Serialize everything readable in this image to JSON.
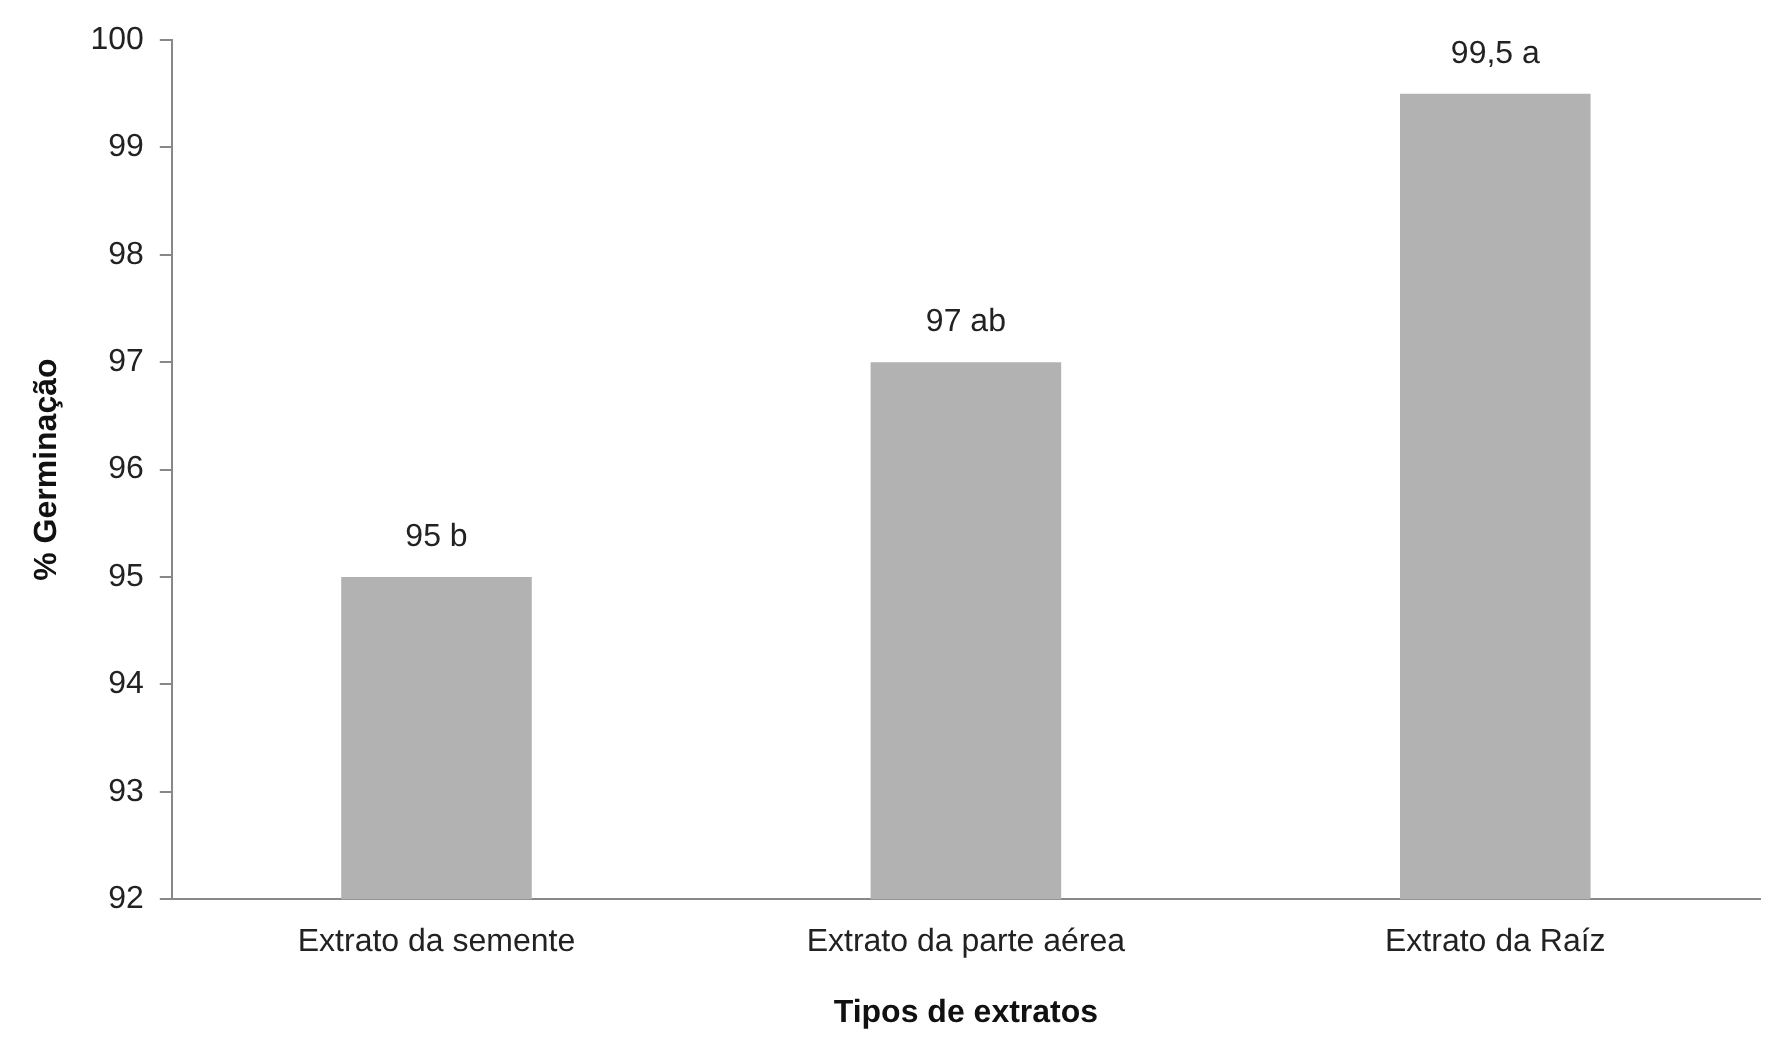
{
  "chart_data": {
    "type": "bar",
    "xlabel": "Tipos de extratos",
    "ylabel": "% Germinação",
    "categories": [
      "Extrato da semente",
      "Extrato da parte aérea",
      "Extrato da Raíz"
    ],
    "values": [
      95,
      97,
      99.5
    ],
    "color": "#b2b2b2",
    "value_labels": [
      "95 b",
      "97 ab",
      "99,5 a"
    ],
    "ylim": [
      92,
      100
    ],
    "yticks": [
      92,
      93,
      94,
      95,
      96,
      97,
      98,
      99,
      100
    ],
    "grid": false,
    "legend": false
  }
}
